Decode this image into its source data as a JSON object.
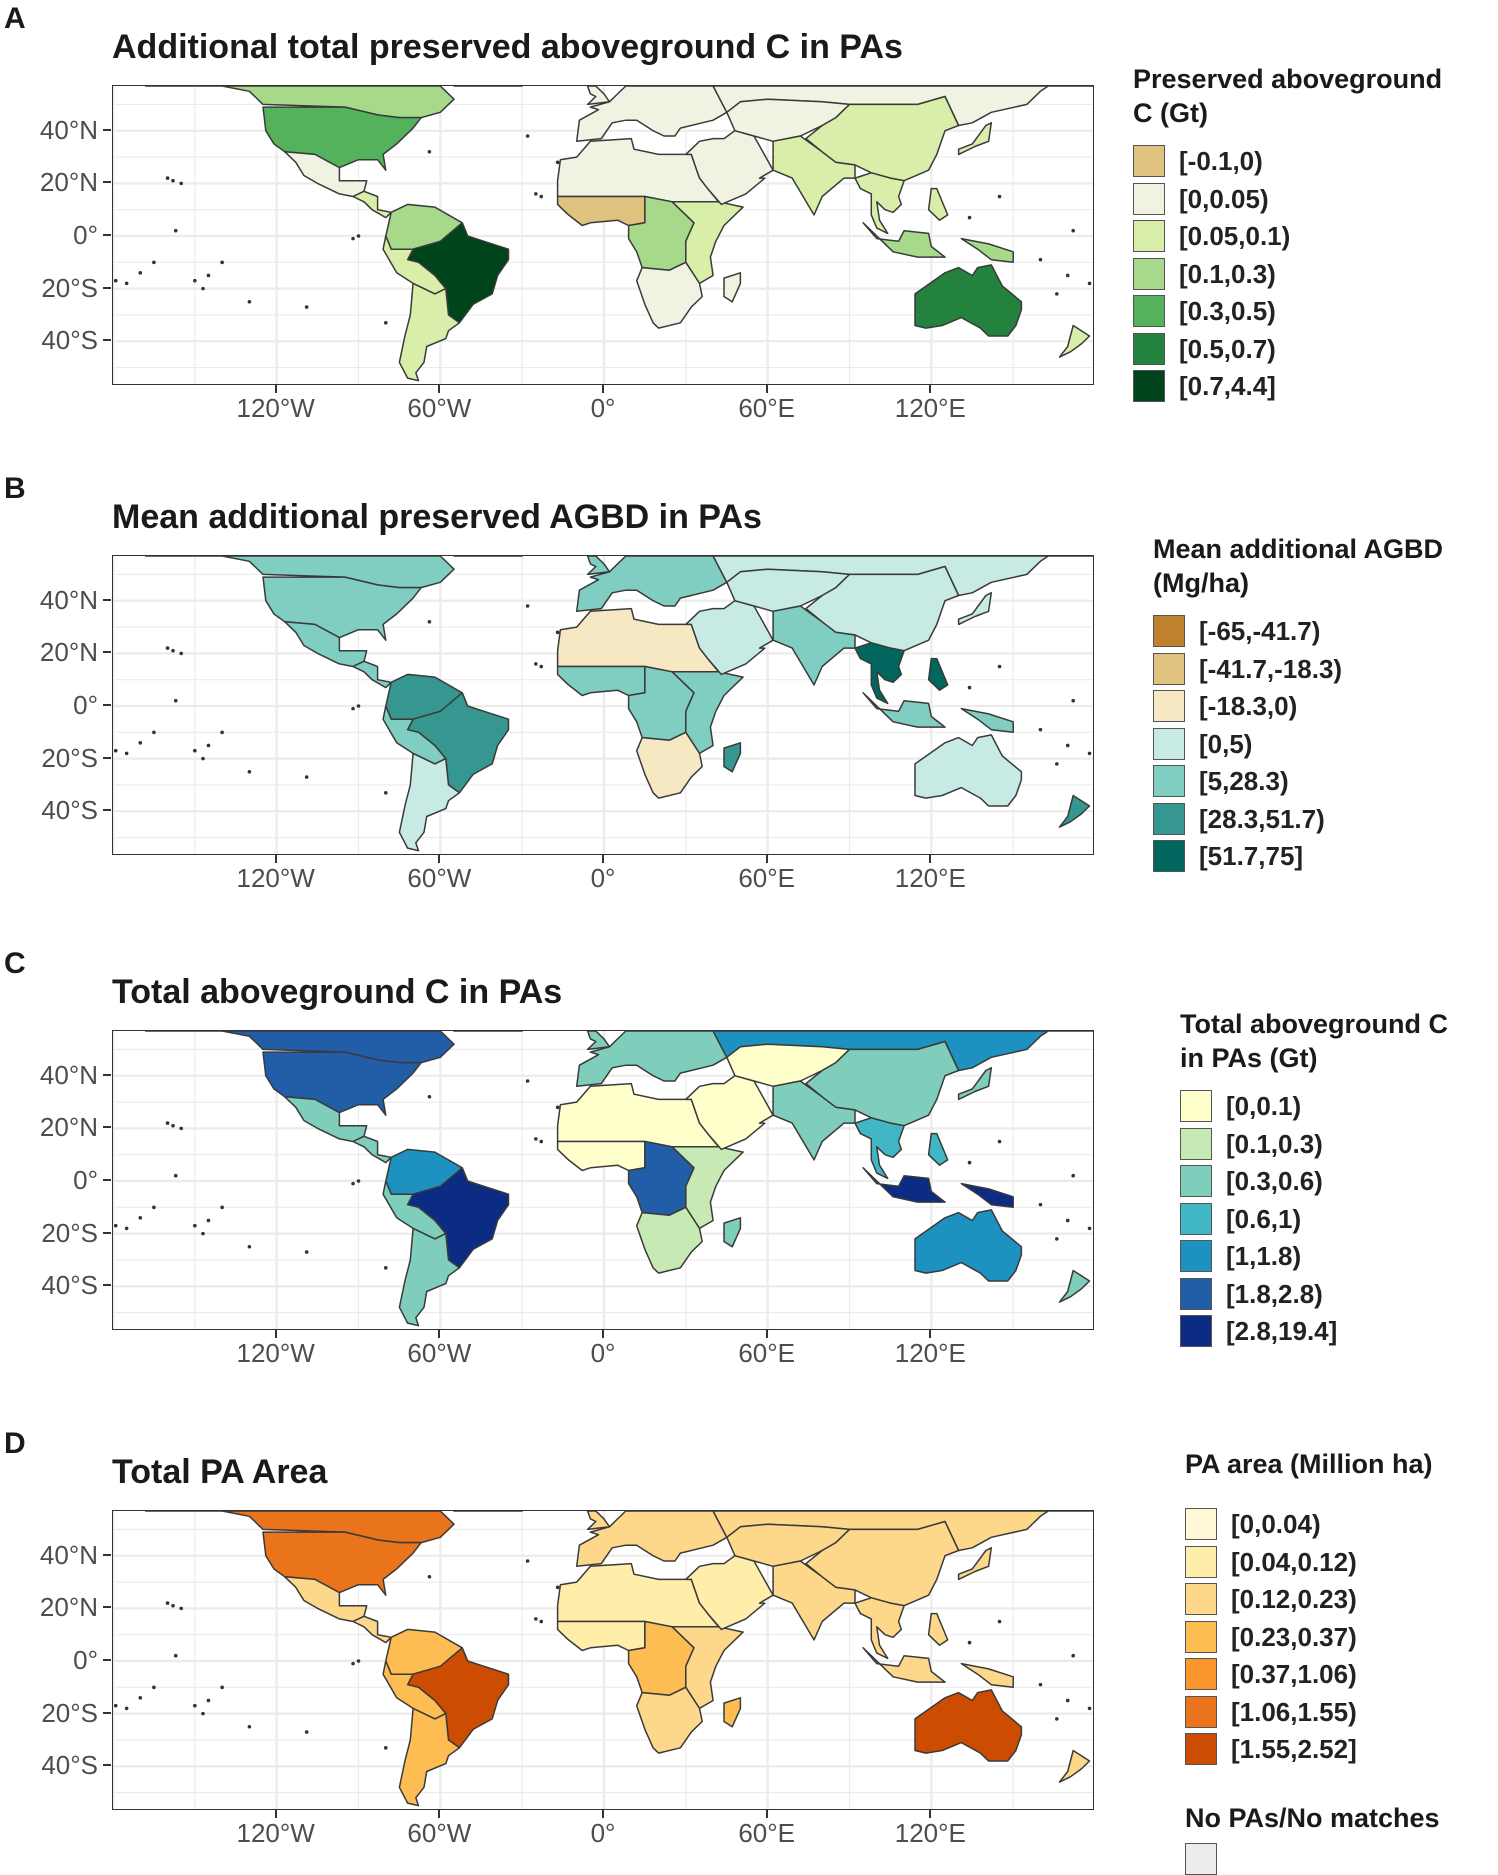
{
  "axes": {
    "y_ticks": [
      "40°N",
      "20°N",
      "0°",
      "20°S",
      "40°S"
    ],
    "x_ticks": [
      "120°W",
      "60°W",
      "0°",
      "60°E",
      "120°E"
    ]
  },
  "panels": [
    {
      "letter": "A",
      "title": "Additional total preserved aboveground C in PAs",
      "legend_title_lines": [
        "Preserved aboveground",
        "C (Gt)"
      ],
      "legend": [
        {
          "label": "[-0.1,0)",
          "color": "#dfc27d"
        },
        {
          "label": "[0,0.05)",
          "color": "#f1f3e2"
        },
        {
          "label": "[0.05,0.1)",
          "color": "#d9efa9"
        },
        {
          "label": "[0.1,0.3)",
          "color": "#a6d98a"
        },
        {
          "label": "[0.3,0.5)",
          "color": "#55b25c"
        },
        {
          "label": "[0.5,0.7)",
          "color": "#23823e"
        },
        {
          "label": "[0.7,4.4]",
          "color": "#00441b"
        }
      ],
      "region_colors": {
        "canada": "#a6d98a",
        "usa": "#55b25c",
        "mexico": "#f1f3e2",
        "central_am": "#d9efa9",
        "south_am": "#a6d98a",
        "brazil": "#00441b",
        "andes": "#d9efa9",
        "southern_cone": "#d9efa9",
        "europe": "#f1f3e2",
        "russia": "#f1f3e2",
        "n_africa": "#f1f3e2",
        "w_africa": "#dfc27d",
        "c_africa": "#a6d98a",
        "e_africa": "#d9efa9",
        "s_africa": "#f1f3e2",
        "middle_east": "#f1f3e2",
        "c_asia": "#f1f3e2",
        "india": "#d9efa9",
        "china": "#d9efa9",
        "se_asia": "#d9efa9",
        "indonesia": "#a6d98a",
        "australia": "#23823e",
        "nz": "#d9efa9",
        "madagascar": "#f1f3e2",
        "greenland": "#ffffff"
      }
    },
    {
      "letter": "B",
      "title": "Mean additional preserved AGBD in PAs",
      "legend_title_lines": [
        "Mean additional AGBD",
        "(Mg/ha)"
      ],
      "legend": [
        {
          "label": "[-65,-41.7)",
          "color": "#bf812d"
        },
        {
          "label": "[-41.7,-18.3)",
          "color": "#dfc27d"
        },
        {
          "label": "[-18.3,0)",
          "color": "#f6e8c3"
        },
        {
          "label": "[0,5)",
          "color": "#c7eae5"
        },
        {
          "label": "[5,28.3)",
          "color": "#80cdc1"
        },
        {
          "label": "[28.3,51.7)",
          "color": "#35978f"
        },
        {
          "label": "[51.7,75]",
          "color": "#01665e"
        }
      ],
      "region_colors": {
        "canada": "#80cdc1",
        "usa": "#80cdc1",
        "mexico": "#80cdc1",
        "central_am": "#80cdc1",
        "south_am": "#35978f",
        "brazil": "#35978f",
        "andes": "#80cdc1",
        "southern_cone": "#c7eae5",
        "europe": "#80cdc1",
        "russia": "#c7eae5",
        "n_africa": "#f6e8c3",
        "w_africa": "#80cdc1",
        "c_africa": "#80cdc1",
        "e_africa": "#80cdc1",
        "s_africa": "#f6e8c3",
        "middle_east": "#c7eae5",
        "c_asia": "#c7eae5",
        "india": "#80cdc1",
        "china": "#c7eae5",
        "se_asia": "#01665e",
        "indonesia": "#80cdc1",
        "australia": "#c7eae5",
        "nz": "#35978f",
        "madagascar": "#35978f",
        "greenland": "#ffffff"
      }
    },
    {
      "letter": "C",
      "title": "Total aboveground C in PAs",
      "legend_title_lines": [
        "Total aboveground C",
        "in PAs (Gt)"
      ],
      "legend": [
        {
          "label": "[0,0.1)",
          "color": "#ffffcc"
        },
        {
          "label": "[0.1,0.3)",
          "color": "#c7e9b4"
        },
        {
          "label": "[0.3,0.6)",
          "color": "#7fcdbb"
        },
        {
          "label": "[0.6,1)",
          "color": "#41b6c4"
        },
        {
          "label": "[1,1.8)",
          "color": "#1d91c0"
        },
        {
          "label": "[1.8,2.8)",
          "color": "#225ea8"
        },
        {
          "label": "[2.8,19.4]",
          "color": "#0c2c84"
        }
      ],
      "region_colors": {
        "canada": "#225ea8",
        "usa": "#225ea8",
        "mexico": "#7fcdbb",
        "central_am": "#7fcdbb",
        "south_am": "#1d91c0",
        "brazil": "#0c2c84",
        "andes": "#7fcdbb",
        "southern_cone": "#7fcdbb",
        "europe": "#7fcdbb",
        "russia": "#1d91c0",
        "n_africa": "#ffffcc",
        "w_africa": "#ffffcc",
        "c_africa": "#225ea8",
        "e_africa": "#c7e9b4",
        "s_africa": "#c7e9b4",
        "middle_east": "#ffffcc",
        "c_asia": "#ffffcc",
        "india": "#7fcdbb",
        "china": "#7fcdbb",
        "se_asia": "#41b6c4",
        "indonesia": "#0c2c84",
        "australia": "#1d91c0",
        "nz": "#7fcdbb",
        "madagascar": "#7fcdbb",
        "greenland": "#ffffff"
      }
    },
    {
      "letter": "D",
      "title": "Total PA Area",
      "legend_title_lines": [
        "PA area (Million ha)"
      ],
      "legend": [
        {
          "label": "[0,0.04)",
          "color": "#fff7d6"
        },
        {
          "label": "[0.04,0.12)",
          "color": "#ffedaa"
        },
        {
          "label": "[0.12,0.23)",
          "color": "#fdd88a"
        },
        {
          "label": "[0.23,0.37)",
          "color": "#fdbd53"
        },
        {
          "label": "[0.37,1.06)",
          "color": "#f9972e"
        },
        {
          "label": "[1.06,1.55)",
          "color": "#e9741c"
        },
        {
          "label": "[1.55,2.52]",
          "color": "#cc4c02"
        }
      ],
      "extra_legend": {
        "title": "No PAs/No matches",
        "color": "#ececec"
      },
      "region_colors": {
        "canada": "#e9741c",
        "usa": "#e9741c",
        "mexico": "#fdd88a",
        "central_am": "#fdd88a",
        "south_am": "#fdbd53",
        "brazil": "#cc4c02",
        "andes": "#fdbd53",
        "southern_cone": "#fdbd53",
        "europe": "#fdd88a",
        "russia": "#fdd88a",
        "n_africa": "#ffedaa",
        "w_africa": "#ffedaa",
        "c_africa": "#fdbd53",
        "e_africa": "#fdd88a",
        "s_africa": "#fdd88a",
        "middle_east": "#ffedaa",
        "c_asia": "#fdd88a",
        "india": "#fdd88a",
        "china": "#fdd88a",
        "se_asia": "#fdd88a",
        "indonesia": "#fdd88a",
        "australia": "#cc4c02",
        "nz": "#fdd88a",
        "madagascar": "#fdbd53",
        "greenland": "#ffffff"
      }
    }
  ]
}
